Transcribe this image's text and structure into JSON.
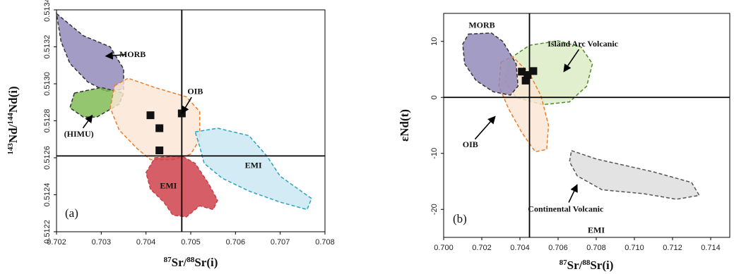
{
  "chart_data": [
    {
      "type": "scatter",
      "panel_label": "(a)",
      "xlabel": {
        "pre": "87",
        "base": "Sr/",
        "pre2": "88",
        "rest": "Sr(i)"
      },
      "ylabel": {
        "pre": "143",
        "base": "Nd/",
        "pre2": "144",
        "rest": "Nd(i)"
      },
      "xlim": [
        0.702,
        0.708
      ],
      "ylim": [
        0.5122,
        0.5134
      ],
      "xticks": [
        "0.702",
        "0.703",
        "0.704",
        "0.705",
        "0.706",
        "0.707",
        "0.708"
      ],
      "yticks": [
        "0.5122",
        "0.5124",
        "0.5126",
        "0.5128",
        "0.5130",
        "0.5132",
        "0.5134"
      ],
      "ref_lines": {
        "x": 0.7048,
        "y": 0.51261
      },
      "points": [
        [
          0.7041,
          0.51283
        ],
        [
          0.7043,
          0.51276
        ],
        [
          0.7043,
          0.51264
        ],
        [
          0.7048,
          0.51284
        ]
      ],
      "fields": [
        {
          "name": "MORB",
          "fill": "#8f86b8",
          "stroke": "#333333",
          "poly": [
            [
              0.702,
              0.51338
            ],
            [
              0.7026,
              0.51326
            ],
            [
              0.7032,
              0.5132
            ],
            [
              0.7035,
              0.51308
            ],
            [
              0.7035,
              0.51297
            ],
            [
              0.7031,
              0.51296
            ],
            [
              0.7027,
              0.51301
            ],
            [
              0.7023,
              0.51311
            ],
            [
              0.7021,
              0.51323
            ]
          ]
        },
        {
          "name": "(HIMU)",
          "fill": "#7dba4f",
          "stroke": "#333333",
          "poly": [
            [
              0.7024,
              0.51295
            ],
            [
              0.703,
              0.51298
            ],
            [
              0.7035,
              0.51295
            ],
            [
              0.7034,
              0.51289
            ],
            [
              0.7029,
              0.51282
            ],
            [
              0.7026,
              0.51282
            ],
            [
              0.7023,
              0.51287
            ]
          ]
        },
        {
          "name": "OIB",
          "fill": "#fbe6d4",
          "stroke": "#e87e2b",
          "poly": [
            [
              0.7033,
              0.51299
            ],
            [
              0.7036,
              0.51303
            ],
            [
              0.7042,
              0.51298
            ],
            [
              0.7049,
              0.51293
            ],
            [
              0.7052,
              0.51285
            ],
            [
              0.7052,
              0.5127
            ],
            [
              0.705,
              0.51262
            ],
            [
              0.7046,
              0.51259
            ],
            [
              0.7041,
              0.51259
            ],
            [
              0.7038,
              0.51265
            ],
            [
              0.7034,
              0.51275
            ],
            [
              0.7032,
              0.51287
            ]
          ]
        },
        {
          "name": "EMI",
          "fill": "#cc3b45",
          "stroke": "#cc3b45",
          "poly": [
            [
              0.7042,
              0.5126
            ],
            [
              0.7048,
              0.51261
            ],
            [
              0.7051,
              0.51257
            ],
            [
              0.7054,
              0.51246
            ],
            [
              0.7056,
              0.51237
            ],
            [
              0.7055,
              0.51232
            ],
            [
              0.7052,
              0.51234
            ],
            [
              0.7049,
              0.51228
            ],
            [
              0.7046,
              0.51229
            ],
            [
              0.7044,
              0.51236
            ],
            [
              0.7041,
              0.51243
            ],
            [
              0.704,
              0.51252
            ]
          ]
        },
        {
          "name": "EMI",
          "fill": "#c9e7f2",
          "stroke": "#2aa3c4",
          "poly": [
            [
              0.7051,
              0.51274
            ],
            [
              0.7056,
              0.51276
            ],
            [
              0.7063,
              0.51272
            ],
            [
              0.7067,
              0.51261
            ],
            [
              0.707,
              0.5125
            ],
            [
              0.7077,
              0.51238
            ],
            [
              0.7076,
              0.51232
            ],
            [
              0.707,
              0.51236
            ],
            [
              0.7063,
              0.51242
            ],
            [
              0.7057,
              0.51249
            ],
            [
              0.7053,
              0.51257
            ],
            [
              0.7052,
              0.51266
            ]
          ]
        }
      ],
      "annotations": [
        {
          "text": "MORB",
          "at": [
            0.7037,
            0.51316
          ],
          "arrow_to": [
            0.7031,
            0.51315
          ]
        },
        {
          "text": "OIB",
          "at": [
            0.7051,
            0.51296
          ],
          "arrow_to": [
            0.7048,
            0.51284
          ]
        },
        {
          "text": "(HIMU)",
          "at": [
            0.7025,
            0.51273
          ],
          "arrow_to": [
            0.7028,
            0.51283
          ]
        },
        {
          "text": "EMI",
          "at": [
            0.7064,
            0.51256
          ],
          "arrow_to": null
        },
        {
          "text": "EMI",
          "at": [
            0.7045,
            0.51245
          ],
          "arrow_to": null
        }
      ]
    },
    {
      "type": "scatter",
      "panel_label": "(b)",
      "xlabel": {
        "pre": "87",
        "base": "Sr/",
        "pre2": "88",
        "rest": "Sr(i)"
      },
      "ylabel": {
        "text": "εNd(t)"
      },
      "xlim": [
        0.7,
        0.715
      ],
      "ylim": [
        -25,
        15
      ],
      "xticks": [
        "0.700",
        "0.702",
        "0.704",
        "0.706",
        "0.708",
        "0.710",
        "0.712",
        "0.714"
      ],
      "yticks": [
        "-20",
        "-10",
        "0",
        "10"
      ],
      "ref_lines": {
        "x": 0.7045,
        "y": 0
      },
      "points": [
        [
          0.7041,
          4.6
        ],
        [
          0.7047,
          4.7
        ],
        [
          0.7043,
          3.0
        ],
        [
          0.7044,
          4.0
        ]
      ],
      "fields": [
        {
          "name": "Island Arc Volcanic",
          "fill": "#dcecc5",
          "stroke": "#4f8a2b",
          "poly": [
            [
              0.7035,
              7.0
            ],
            [
              0.7045,
              9.3
            ],
            [
              0.706,
              10.1
            ],
            [
              0.7072,
              9.0
            ],
            [
              0.7078,
              6.0
            ],
            [
              0.7075,
              2.0
            ],
            [
              0.7066,
              -0.8
            ],
            [
              0.7052,
              -1.3
            ],
            [
              0.7038,
              0.0
            ],
            [
              0.7032,
              3.0
            ]
          ]
        },
        {
          "name": "OIB",
          "fill": "#fbe6d4",
          "stroke": "#e87e2b",
          "poly": [
            [
              0.703,
              6.3
            ],
            [
              0.7036,
              7.3
            ],
            [
              0.7045,
              4.3
            ],
            [
              0.7051,
              0.3
            ],
            [
              0.7055,
              -5.0
            ],
            [
              0.7054,
              -9.3
            ],
            [
              0.7048,
              -9.7
            ],
            [
              0.7041,
              -6.3
            ],
            [
              0.7034,
              -2.0
            ],
            [
              0.7029,
              2.0
            ]
          ]
        },
        {
          "name": "MORB",
          "fill": "#8f86b8",
          "stroke": "#333333",
          "poly": [
            [
              0.7013,
              11.3
            ],
            [
              0.7025,
              11.5
            ],
            [
              0.7031,
              10.0
            ],
            [
              0.7038,
              6.0
            ],
            [
              0.7039,
              2.0
            ],
            [
              0.7035,
              0.4
            ],
            [
              0.7026,
              1.0
            ],
            [
              0.7017,
              3.0
            ],
            [
              0.7011,
              6.0
            ],
            [
              0.701,
              9.5
            ]
          ]
        },
        {
          "name": "EMI",
          "fill": "#dddddd",
          "stroke": "#555555",
          "poly": [
            [
              0.7067,
              -9.5
            ],
            [
              0.708,
              -11.0
            ],
            [
              0.711,
              -13.3
            ],
            [
              0.713,
              -15.2
            ],
            [
              0.7134,
              -17.5
            ],
            [
              0.7122,
              -18.2
            ],
            [
              0.7105,
              -17.2
            ],
            [
              0.7083,
              -16.5
            ],
            [
              0.707,
              -14.0
            ],
            [
              0.7066,
              -11.5
            ]
          ]
        }
      ],
      "annotations": [
        {
          "text": "MORB",
          "at": [
            0.702,
            12.9
          ],
          "arrow_to": null
        },
        {
          "text": "Island Arc Volcanic",
          "at": [
            0.7073,
            9.6
          ],
          "arrow_to": [
            0.7063,
            4.6
          ]
        },
        {
          "text": "OIB",
          "at": [
            0.7014,
            -8.4
          ],
          "arrow_to": [
            0.7027,
            -3.4
          ]
        },
        {
          "text": "Continental Volcanic",
          "at": [
            0.7064,
            -19.9
          ],
          "arrow_to": [
            0.707,
            -15.6
          ]
        },
        {
          "text": "EMI",
          "at": [
            0.708,
            -23.7
          ],
          "arrow_to": null
        }
      ]
    }
  ]
}
